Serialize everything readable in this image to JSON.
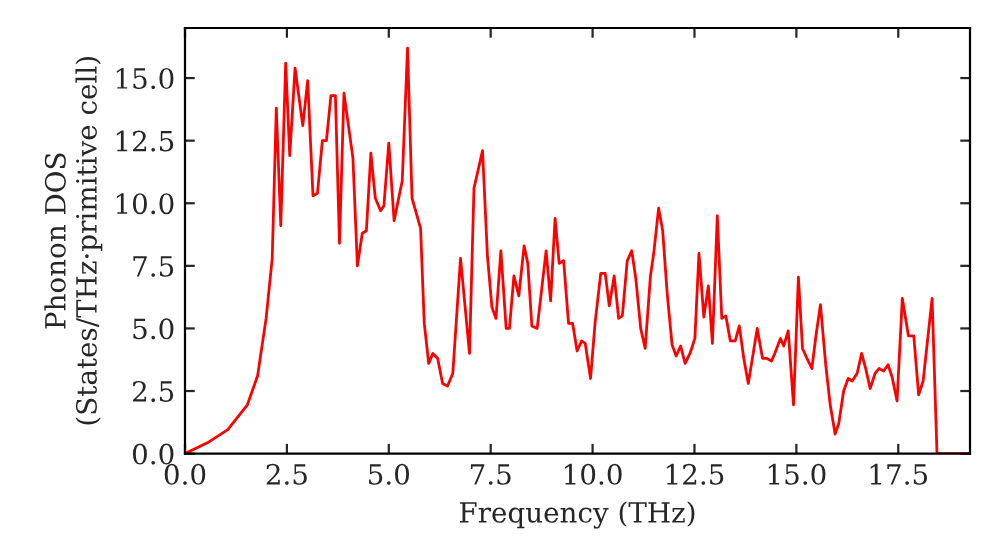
{
  "chart_data": {
    "type": "line",
    "xlabel": "Frequency (THz)",
    "ylabel": "Phonon DOS\n(States/THz·primitive cell)",
    "xlim": [
      0,
      19.26
    ],
    "ylim": [
      0,
      17
    ],
    "xticks": [
      {
        "value": 0,
        "label": "0.0"
      },
      2.5,
      {
        "value": 5,
        "label": "5.0"
      },
      7.5,
      {
        "value": 10,
        "label": "10.0"
      },
      12.5,
      {
        "value": 15,
        "label": "15.0"
      },
      17.5
    ],
    "yticks": [
      {
        "value": 0,
        "label": "0.0"
      },
      2.5,
      {
        "value": 5,
        "label": "5.0"
      },
      7.5,
      {
        "value": 10,
        "label": "10.0"
      },
      12.5,
      {
        "value": 15,
        "label": "15.0"
      }
    ],
    "grid": false,
    "marker": "none",
    "line_style": "solid",
    "series": [
      {
        "color": "#ff0000",
        "x": [
          0,
          0.55,
          1.05,
          1.53,
          1.78,
          1.99,
          2.14,
          2.24,
          2.35,
          2.47,
          2.57,
          2.7,
          2.89,
          3.01,
          3.14,
          3.25,
          3.37,
          3.47,
          3.58,
          3.69,
          3.79,
          3.9,
          4.12,
          4.23,
          4.35,
          4.45,
          4.56,
          4.67,
          4.8,
          4.88,
          5.0,
          5.13,
          5.33,
          5.46,
          5.57,
          5.78,
          5.87,
          5.98,
          6.08,
          6.2,
          6.32,
          6.44,
          6.57,
          6.76,
          6.98,
          7.09,
          7.3,
          7.42,
          7.53,
          7.63,
          7.75,
          7.88,
          7.96,
          8.07,
          8.19,
          8.32,
          8.41,
          8.51,
          8.64,
          8.86,
          8.97,
          9.08,
          9.18,
          9.29,
          9.41,
          9.51,
          9.62,
          9.73,
          9.82,
          9.95,
          10.06,
          10.2,
          10.31,
          10.41,
          10.53,
          10.64,
          10.73,
          10.85,
          10.96,
          11.06,
          11.18,
          11.29,
          11.42,
          11.5,
          11.62,
          11.72,
          11.83,
          11.95,
          12.05,
          12.16,
          12.27,
          12.39,
          12.51,
          12.61,
          12.73,
          12.84,
          12.94,
          13.06,
          13.17,
          13.27,
          13.38,
          13.5,
          13.6,
          13.71,
          13.82,
          13.93,
          14.04,
          14.17,
          14.28,
          14.39,
          14.47,
          14.61,
          14.69,
          14.8,
          14.93,
          15.05,
          15.15,
          15.26,
          15.38,
          15.48,
          15.59,
          15.72,
          15.83,
          15.95,
          16.04,
          16.16,
          16.27,
          16.37,
          16.49,
          16.6,
          16.7,
          16.81,
          16.93,
          17.03,
          17.14,
          17.25,
          17.35,
          17.47,
          17.6,
          17.75,
          17.88,
          18.0,
          18.11,
          18.33,
          18.45,
          19.26
        ],
        "values": [
          0,
          0.43,
          0.96,
          1.95,
          3.1,
          5.4,
          7.8,
          13.8,
          9.1,
          15.6,
          11.9,
          15.4,
          13.1,
          14.9,
          10.3,
          10.4,
          12.5,
          12.5,
          14.3,
          14.3,
          8.4,
          14.4,
          11.8,
          7.5,
          8.8,
          8.9,
          12.0,
          10.2,
          9.7,
          9.9,
          12.4,
          9.3,
          10.9,
          16.2,
          10.2,
          9.0,
          5.2,
          3.6,
          4.0,
          3.8,
          2.8,
          2.7,
          3.2,
          7.8,
          4.0,
          10.6,
          12.1,
          7.9,
          5.85,
          5.4,
          8.1,
          5.0,
          5.0,
          7.1,
          6.3,
          8.3,
          7.6,
          5.1,
          5.0,
          8.1,
          6.1,
          9.4,
          7.6,
          7.7,
          5.2,
          5.2,
          4.1,
          4.5,
          4.4,
          3.0,
          5.2,
          7.2,
          7.2,
          5.9,
          7.1,
          5.4,
          5.5,
          7.7,
          8.1,
          7.0,
          5.0,
          4.2,
          7.1,
          8.0,
          9.8,
          8.9,
          6.4,
          4.35,
          3.9,
          4.3,
          3.6,
          4.0,
          4.6,
          8.0,
          5.45,
          6.7,
          4.4,
          9.5,
          5.4,
          5.5,
          4.5,
          4.5,
          5.1,
          3.8,
          2.8,
          3.9,
          5.0,
          3.8,
          3.8,
          3.7,
          4.0,
          4.6,
          4.3,
          4.9,
          1.95,
          7.05,
          4.2,
          3.8,
          3.4,
          4.7,
          5.95,
          3.55,
          1.95,
          0.78,
          1.2,
          2.5,
          3.0,
          2.9,
          3.2,
          4.0,
          3.4,
          2.6,
          3.2,
          3.4,
          3.3,
          3.55,
          3.05,
          2.1,
          6.2,
          4.7,
          4.7,
          2.35,
          2.9,
          6.2,
          0,
          0
        ]
      }
    ]
  }
}
